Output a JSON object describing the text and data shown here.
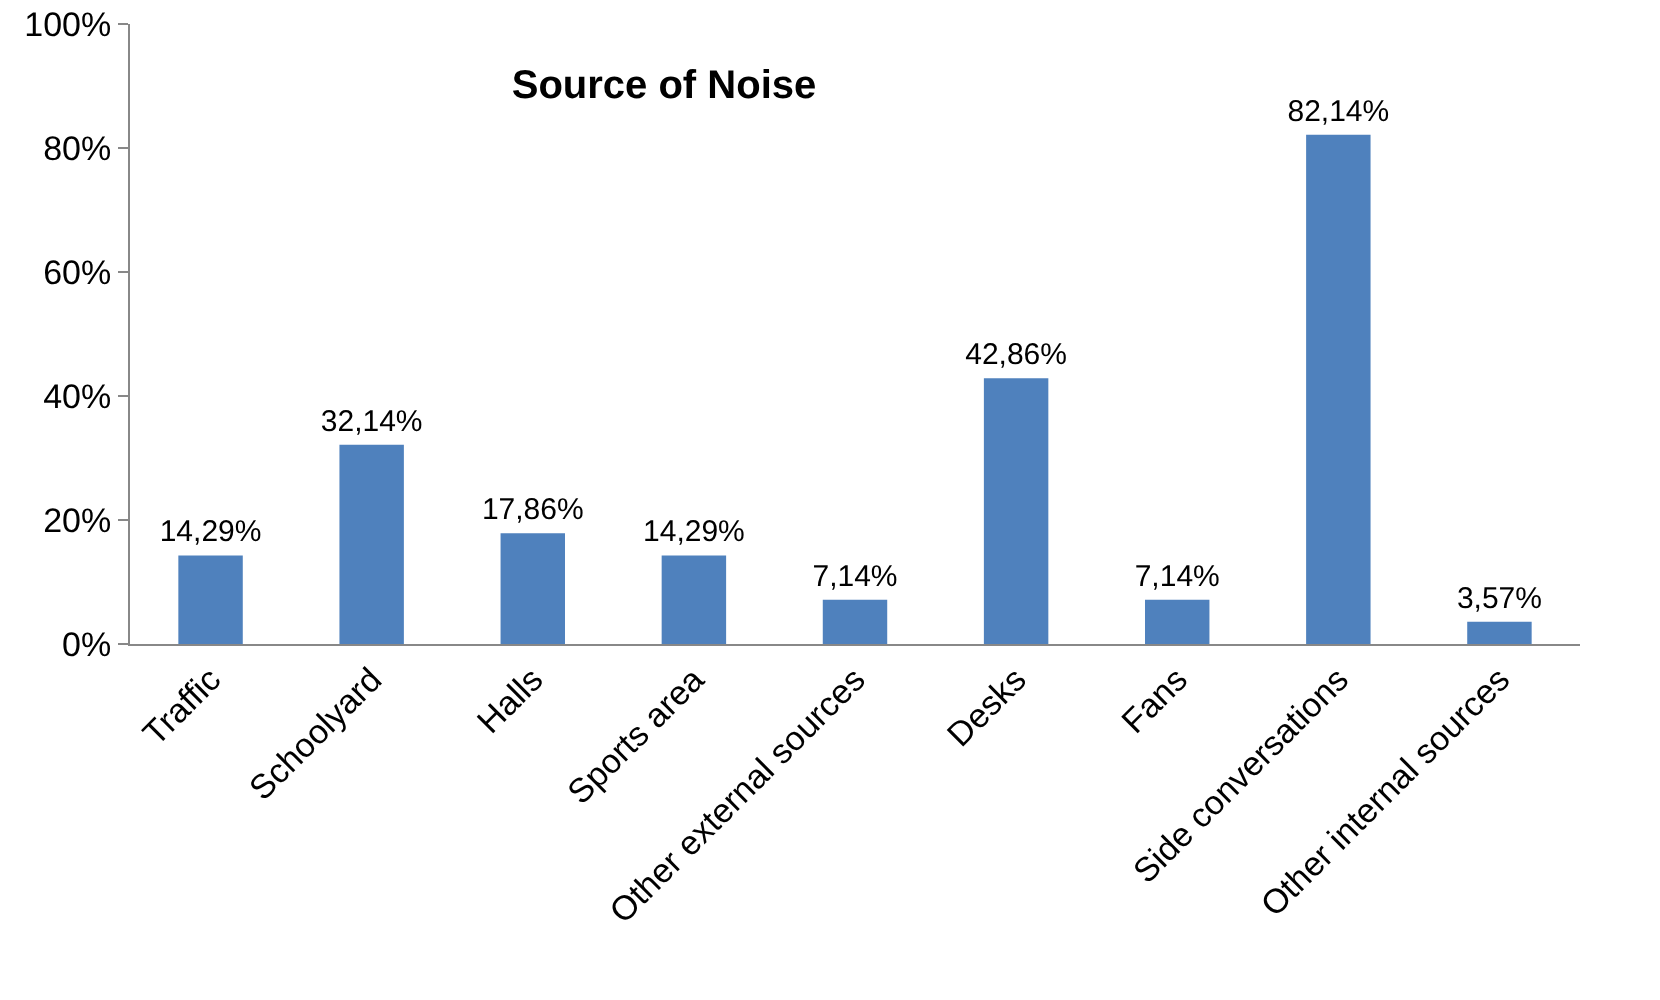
{
  "chart_data": {
    "type": "bar",
    "title": "Source of Noise",
    "categories": [
      "Traffic",
      "Schoolyard",
      "Halls",
      "Sports area",
      "Other external sources",
      "Desks",
      "Fans",
      "Side conversations",
      "Other internal sources"
    ],
    "values": [
      14.29,
      32.14,
      17.86,
      14.29,
      7.14,
      42.86,
      7.14,
      82.14,
      3.57
    ],
    "value_labels": [
      "14,29%",
      "32,14%",
      "17,86%",
      "14,29%",
      "7,14%",
      "42,86%",
      "7,14%",
      "82,14%",
      "3,57%"
    ],
    "color": "#4f81bd",
    "ylim": [
      0,
      100
    ],
    "yticks": [
      {
        "value": 0,
        "label": "0%"
      },
      {
        "value": 20,
        "label": "20%"
      },
      {
        "value": 40,
        "label": "40%"
      },
      {
        "value": 60,
        "label": "60%"
      },
      {
        "value": 80,
        "label": "80%"
      },
      {
        "value": 100,
        "label": "100%"
      }
    ],
    "grid": false
  }
}
